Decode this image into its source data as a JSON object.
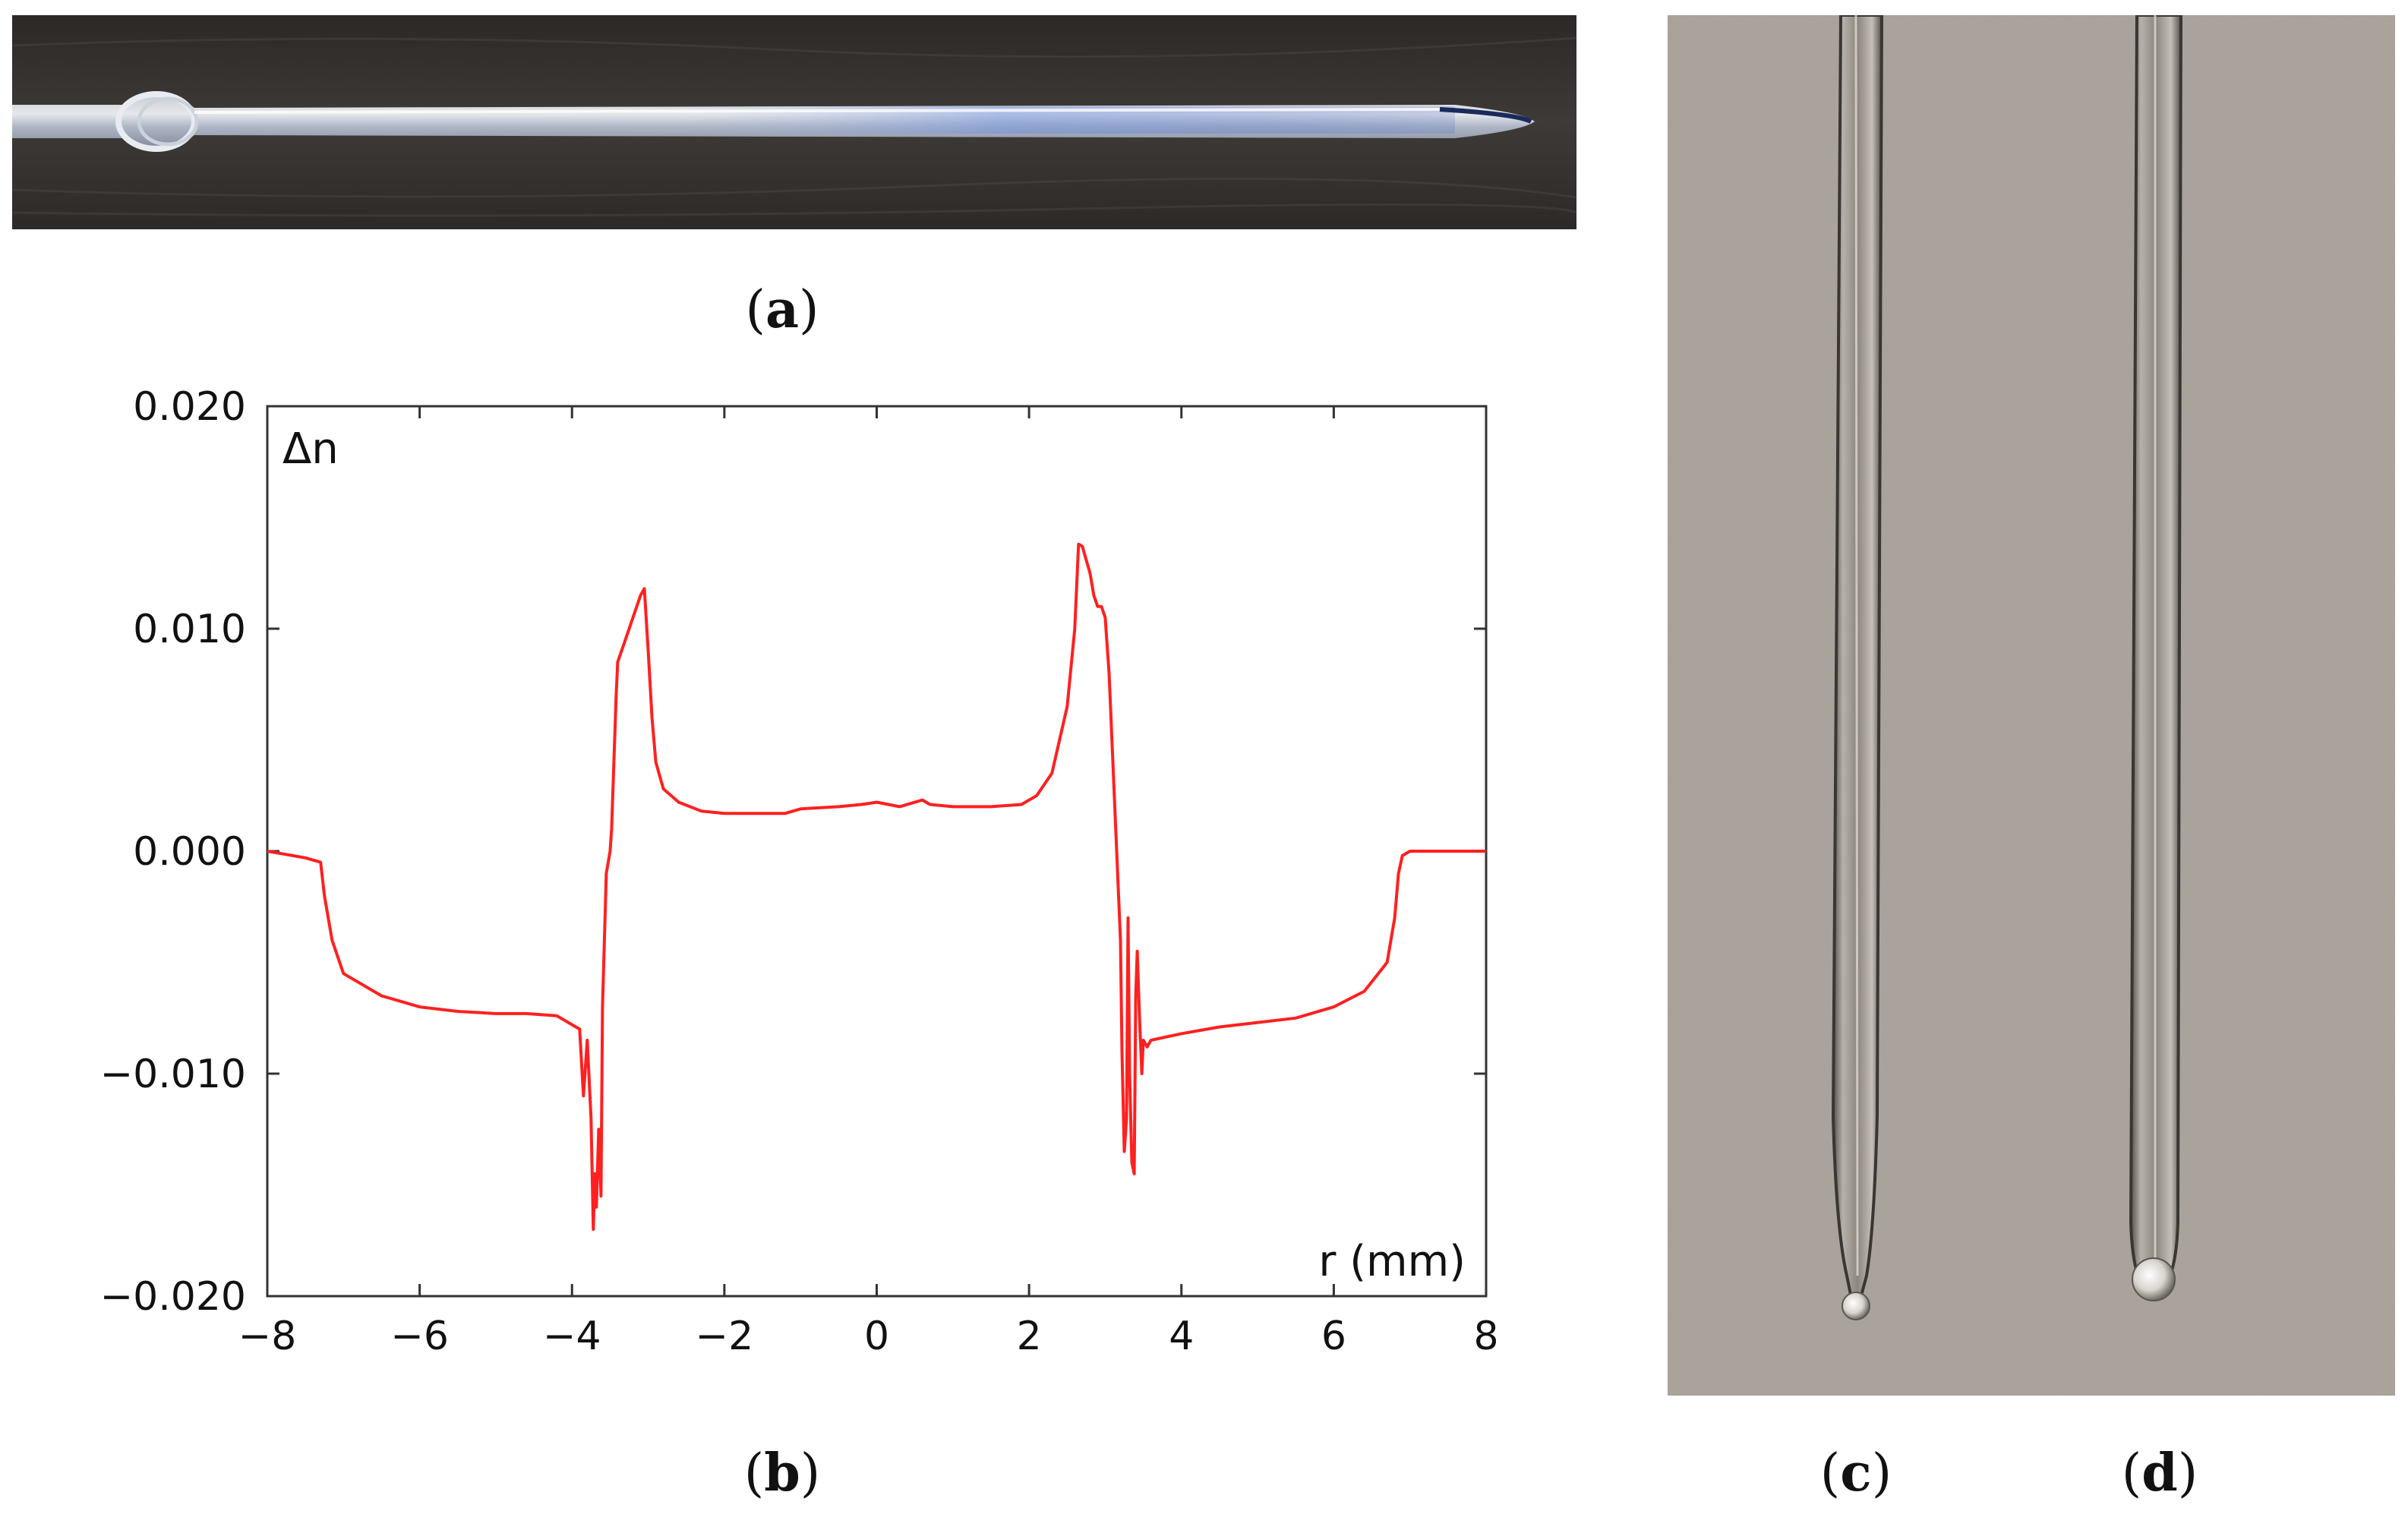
{
  "captions": {
    "a": "a",
    "b": "b",
    "c": "c",
    "d": "d"
  },
  "colors": {
    "curve": "#ff2020",
    "photo_a_bg": "#3a3633",
    "photo_cd_bg": "#aaa49c"
  },
  "chart_data": {
    "type": "line",
    "title": "",
    "xlabel": "r (mm)",
    "ylabel": "Δn",
    "xlim": [
      -8,
      8
    ],
    "ylim": [
      -0.02,
      0.02
    ],
    "xticks": [
      "−8",
      "−6",
      "−4",
      "−2",
      "0",
      "2",
      "4",
      "6",
      "8"
    ],
    "yticks": [
      "0.020",
      "0.010",
      "0.000",
      "−0.010",
      "−0.020"
    ],
    "grid": false,
    "legend": "none",
    "series": [
      {
        "color": "#ff2020",
        "x": [
          -8.0,
          -7.5,
          -7.3,
          -7.25,
          -7.15,
          -7.0,
          -6.5,
          -6.0,
          -5.5,
          -5.0,
          -4.6,
          -4.2,
          -3.9,
          -3.85,
          -3.8,
          -3.75,
          -3.72,
          -3.7,
          -3.68,
          -3.65,
          -3.62,
          -3.6,
          -3.55,
          -3.5,
          -3.48,
          -3.45,
          -3.42,
          -3.4,
          -3.3,
          -3.2,
          -3.1,
          -3.05,
          -3.0,
          -2.95,
          -2.9,
          -2.8,
          -2.6,
          -2.3,
          -2.0,
          -1.5,
          -1.2,
          -1.0,
          -0.5,
          -0.2,
          0.0,
          0.3,
          0.6,
          0.7,
          1.0,
          1.5,
          1.9,
          2.1,
          2.3,
          2.5,
          2.6,
          2.65,
          2.7,
          2.8,
          2.85,
          2.9,
          2.95,
          3.0,
          3.05,
          3.1,
          3.15,
          3.2,
          3.22,
          3.25,
          3.28,
          3.3,
          3.32,
          3.35,
          3.38,
          3.4,
          3.42,
          3.45,
          3.48,
          3.5,
          3.55,
          3.6,
          4.0,
          4.5,
          5.0,
          5.5,
          6.0,
          6.4,
          6.7,
          6.8,
          6.85,
          6.9,
          7.0,
          7.5,
          8.0
        ],
        "y": [
          0.0,
          -0.0003,
          -0.0005,
          -0.002,
          -0.004,
          -0.0055,
          -0.0065,
          -0.007,
          -0.0072,
          -0.0073,
          -0.0073,
          -0.0074,
          -0.008,
          -0.011,
          -0.0085,
          -0.012,
          -0.017,
          -0.0145,
          -0.016,
          -0.0125,
          -0.0155,
          -0.007,
          -0.001,
          0.0,
          0.001,
          0.004,
          0.007,
          0.0085,
          0.0095,
          0.0105,
          0.0115,
          0.0118,
          0.009,
          0.006,
          0.004,
          0.0028,
          0.0022,
          0.0018,
          0.0017,
          0.0017,
          0.0017,
          0.0019,
          0.002,
          0.0021,
          0.0022,
          0.002,
          0.0023,
          0.0021,
          0.002,
          0.002,
          0.0021,
          0.0025,
          0.0035,
          0.0065,
          0.01,
          0.0138,
          0.0137,
          0.0125,
          0.0115,
          0.011,
          0.011,
          0.0105,
          0.008,
          0.004,
          0.0,
          -0.004,
          -0.009,
          -0.0135,
          -0.012,
          -0.003,
          -0.01,
          -0.014,
          -0.0145,
          -0.0065,
          -0.0045,
          -0.0075,
          -0.01,
          -0.0085,
          -0.0088,
          -0.0085,
          -0.0082,
          -0.0079,
          -0.0077,
          -0.0075,
          -0.007,
          -0.0063,
          -0.005,
          -0.003,
          -0.001,
          -0.0002,
          0.0,
          0.0,
          0.0
        ]
      }
    ]
  }
}
